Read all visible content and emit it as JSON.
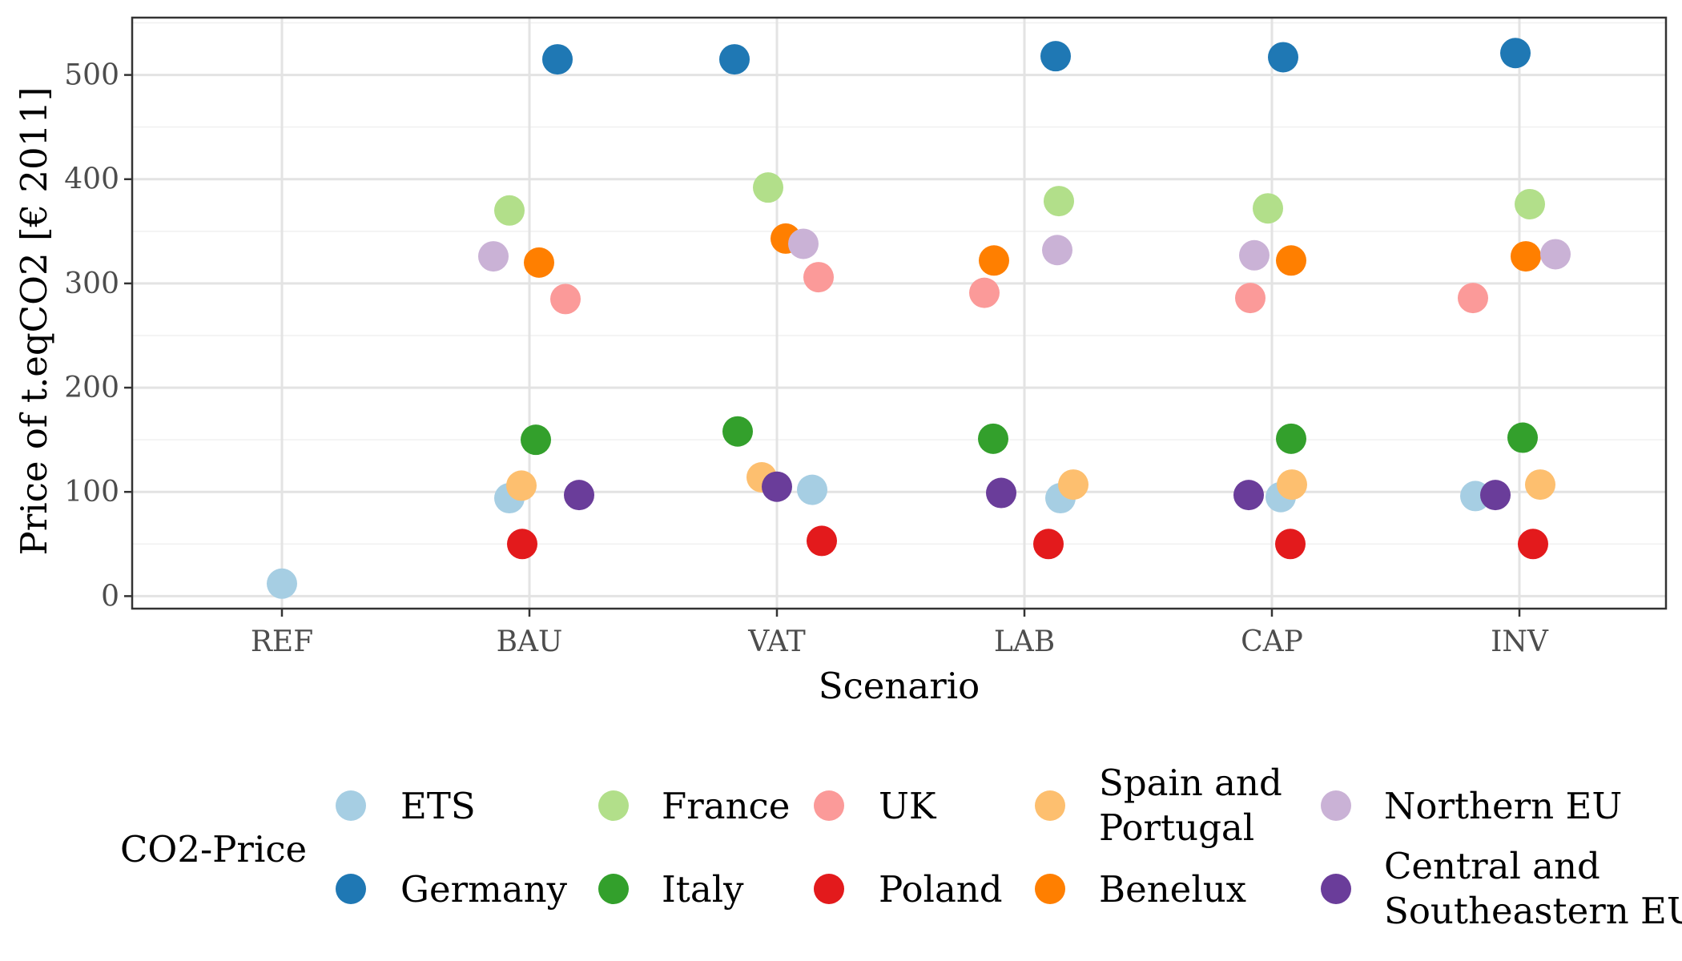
{
  "chart_data": {
    "type": "scatter",
    "xlabel": "Scenario",
    "ylabel": "Price of t.eqCO2 [€ 2011]",
    "categories": [
      "REF",
      "BAU",
      "VAT",
      "LAB",
      "CAP",
      "INV"
    ],
    "y_ticks": [
      "0",
      "100",
      "200",
      "300",
      "400",
      "500"
    ],
    "ylim": [
      -12,
      555
    ],
    "grid": true,
    "legend_title": "CO2-Price",
    "legend_position": "bottom",
    "series": [
      {
        "name": "ETS",
        "color": "#a6cee3",
        "points": [
          [
            "REF",
            12
          ],
          [
            "BAU",
            94
          ],
          [
            "VAT",
            102
          ],
          [
            "LAB",
            94
          ],
          [
            "CAP",
            95
          ],
          [
            "INV",
            96
          ]
        ]
      },
      {
        "name": "Germany",
        "color": "#1f78b4",
        "points": [
          [
            "BAU",
            515
          ],
          [
            "VAT",
            515
          ],
          [
            "LAB",
            518
          ],
          [
            "CAP",
            517
          ],
          [
            "INV",
            521
          ]
        ]
      },
      {
        "name": "France",
        "color": "#b2df8a",
        "points": [
          [
            "BAU",
            370
          ],
          [
            "VAT",
            392
          ],
          [
            "LAB",
            379
          ],
          [
            "CAP",
            372
          ],
          [
            "INV",
            376
          ]
        ]
      },
      {
        "name": "Italy",
        "color": "#33a02c",
        "points": [
          [
            "BAU",
            150
          ],
          [
            "VAT",
            158
          ],
          [
            "LAB",
            151
          ],
          [
            "CAP",
            151
          ],
          [
            "INV",
            152
          ]
        ]
      },
      {
        "name": "UK",
        "color": "#fb9a99",
        "points": [
          [
            "BAU",
            285
          ],
          [
            "VAT",
            306
          ],
          [
            "LAB",
            291
          ],
          [
            "CAP",
            286
          ],
          [
            "INV",
            286
          ]
        ]
      },
      {
        "name": "Poland",
        "color": "#e31a1c",
        "points": [
          [
            "BAU",
            50
          ],
          [
            "VAT",
            53
          ],
          [
            "LAB",
            50
          ],
          [
            "CAP",
            50
          ],
          [
            "INV",
            50
          ]
        ]
      },
      {
        "name": "Spain and Portugal",
        "color": "#fdbf6f",
        "points": [
          [
            "BAU",
            106
          ],
          [
            "VAT",
            114
          ],
          [
            "LAB",
            107
          ],
          [
            "CAP",
            107
          ],
          [
            "INV",
            107
          ]
        ]
      },
      {
        "name": "Benelux",
        "color": "#ff7f00",
        "points": [
          [
            "BAU",
            320
          ],
          [
            "VAT",
            343
          ],
          [
            "LAB",
            322
          ],
          [
            "CAP",
            322
          ],
          [
            "INV",
            326
          ]
        ]
      },
      {
        "name": "Northern EU",
        "color": "#cab2d6",
        "points": [
          [
            "BAU",
            326
          ],
          [
            "VAT",
            338
          ],
          [
            "LAB",
            332
          ],
          [
            "CAP",
            327
          ],
          [
            "INV",
            328
          ]
        ]
      },
      {
        "name": "Central and Southeastern EU",
        "color": "#6a3d9a",
        "points": [
          [
            "BAU",
            97
          ],
          [
            "VAT",
            105
          ],
          [
            "LAB",
            99
          ],
          [
            "CAP",
            97
          ],
          [
            "INV",
            97
          ]
        ]
      }
    ]
  }
}
